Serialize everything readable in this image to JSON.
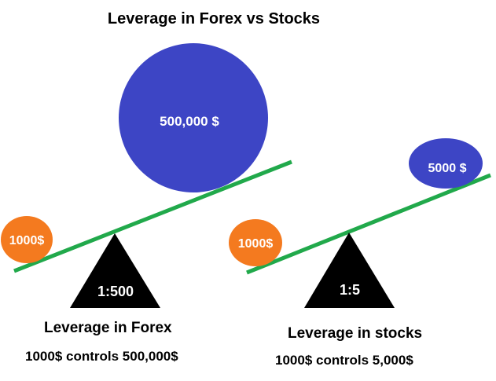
{
  "title": "Leverage in Forex vs Stocks",
  "colors": {
    "beam": "#21a94b",
    "deposit": "#f47a1f",
    "position": "#3d45c5",
    "fulcrum": "#000000",
    "text_on_shape": "#ffffff"
  },
  "forex": {
    "deposit": "1000$",
    "position": "500,000 $",
    "ratio": "1:500",
    "label": "Leverage in Forex",
    "description": "1000$ controls 500,000$"
  },
  "stocks": {
    "deposit": "1000$",
    "position": "5000 $",
    "ratio": "1:5",
    "label": "Leverage in stocks",
    "description": "1000$ controls 5,000$"
  }
}
